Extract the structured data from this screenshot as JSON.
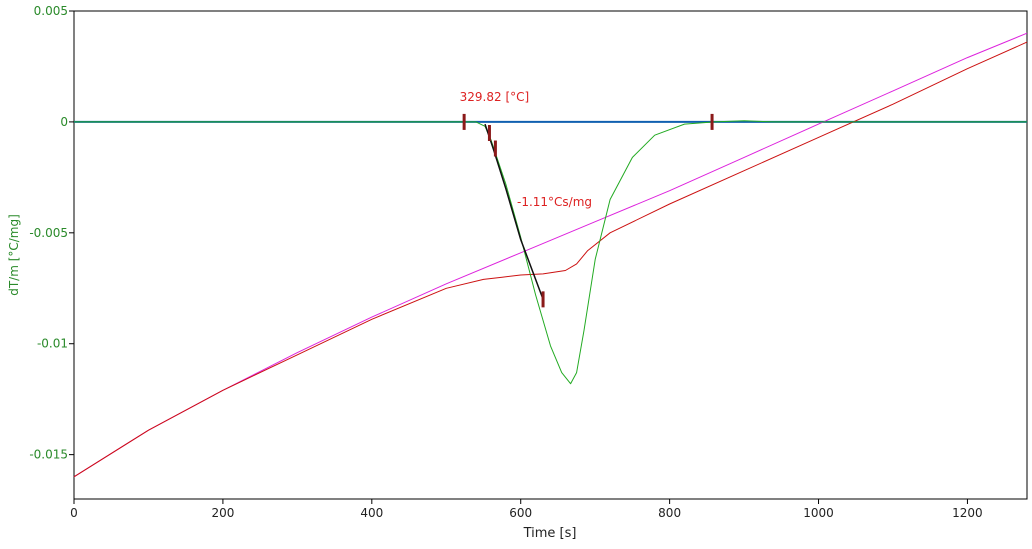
{
  "chart_data": {
    "type": "line",
    "xlabel": "Time [s]",
    "ylabel": "dT/m  [°C/mg]",
    "xlim": [
      0,
      1280
    ],
    "ylim": [
      -0.017,
      0.005
    ],
    "x_ticks": [
      0,
      200,
      400,
      600,
      800,
      1000,
      1200
    ],
    "x_tick_labels": [
      "0",
      "200",
      "400",
      "600",
      "800",
      "1000",
      "1200"
    ],
    "y_ticks": [
      0.005,
      0,
      -0.005,
      -0.01,
      -0.015
    ],
    "y_tick_labels": [
      "0.005",
      "0",
      "-0.005",
      "-0.01",
      "-0.015"
    ],
    "grid": false,
    "legend": "none",
    "series": [
      {
        "color": "#1060b0",
        "width": 2,
        "x": [
          0,
          1280
        ],
        "y": [
          0,
          0
        ]
      },
      {
        "color": "#dd22dd",
        "width": 1,
        "x": [
          0,
          100,
          200,
          300,
          400,
          500,
          600,
          700,
          800,
          900,
          1000,
          1100,
          1200,
          1280
        ],
        "y": [
          -0.016,
          -0.0139,
          -0.0121,
          -0.0104,
          -0.0088,
          -0.0073,
          -0.0059,
          -0.0045,
          -0.0031,
          -0.0016,
          -0.0001,
          0.0014,
          0.0029,
          0.004
        ]
      },
      {
        "color": "#cc1111",
        "width": 1,
        "x": [
          0,
          100,
          200,
          300,
          400,
          500,
          550,
          575,
          600,
          630,
          660,
          675,
          690,
          720,
          800,
          900,
          1000,
          1100,
          1200,
          1280
        ],
        "y": [
          -0.016,
          -0.0139,
          -0.0121,
          -0.0105,
          -0.0089,
          -0.0075,
          -0.0071,
          -0.007,
          -0.0069,
          -0.00685,
          -0.0067,
          -0.0064,
          -0.0058,
          -0.005,
          -0.0037,
          -0.0022,
          -0.0007,
          0.0008,
          0.0024,
          0.0036
        ]
      },
      {
        "color": "#22aa22",
        "width": 1,
        "x": [
          0,
          500,
          540,
          552,
          560,
          580,
          600,
          620,
          640,
          655,
          667,
          675,
          685,
          700,
          720,
          750,
          780,
          820,
          860,
          900,
          940,
          1280
        ],
        "y": [
          0,
          0,
          0,
          -0.0002,
          -0.0008,
          -0.0028,
          -0.0052,
          -0.0078,
          -0.0101,
          -0.0113,
          -0.0118,
          -0.0113,
          -0.0094,
          -0.0062,
          -0.0035,
          -0.0016,
          -0.0006,
          -0.0001,
          0.0,
          5e-05,
          0,
          0
        ]
      },
      {
        "color": "#111111",
        "width": 1.5,
        "x": [
          552,
          563,
          580,
          600,
          630
        ],
        "y": [
          -0.0001,
          -0.0012,
          -0.003,
          -0.0053,
          -0.008
        ]
      }
    ],
    "markers": [
      {
        "x": 524,
        "y": 0,
        "color": "#8b1a1a"
      },
      {
        "x": 558,
        "y": -0.0005,
        "color": "#8b1a1a"
      },
      {
        "x": 566,
        "y": -0.0012,
        "color": "#8b1a1a"
      },
      {
        "x": 630,
        "y": -0.008,
        "color": "#8b1a1a"
      },
      {
        "x": 857,
        "y": 0,
        "color": "#8b1a1a"
      }
    ],
    "annotations": [
      {
        "text": "329.82 [°C]",
        "x": 518,
        "y": 0.00095,
        "color": "#dd2222"
      },
      {
        "text": "-1.11°Cs/mg",
        "x": 595,
        "y": -0.0038,
        "color": "#dd2222"
      }
    ],
    "colors": {
      "y_axis_text": "#2a8a2a",
      "x_axis_text": "#222222",
      "axis": "#000000"
    }
  }
}
